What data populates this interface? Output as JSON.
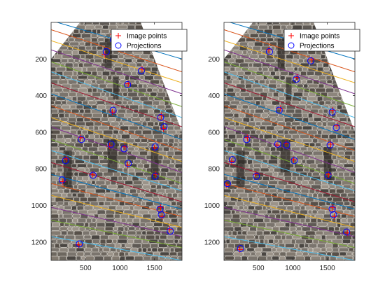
{
  "figure": {
    "legend_entries": [
      "Image points",
      "Projections"
    ]
  },
  "chart_data": [
    {
      "type": "scatter",
      "title": "",
      "xlabel": "",
      "ylabel": "",
      "xlim": [
        0,
        1900
      ],
      "ylim": [
        1300,
        0
      ],
      "y_reversed": true,
      "xticks": [
        500,
        1000,
        1500
      ],
      "xtick_labels": [
        "500",
        "1000",
        "1500"
      ],
      "yticks": [
        200,
        400,
        600,
        800,
        1000,
        1200
      ],
      "ytick_labels": [
        "200",
        "400",
        "600",
        "800",
        "1000",
        "1200"
      ],
      "legend": {
        "position": "top-right",
        "entries": [
          "Image points",
          "Projections"
        ]
      },
      "series": [
        {
          "name": "Image points",
          "marker": "+",
          "color": "#ff0000",
          "points": [
            [
              900,
              65
            ],
            [
              1030,
              130
            ],
            [
              780,
              175
            ],
            [
              1320,
              255
            ],
            [
              1120,
              335
            ],
            [
              890,
              490
            ],
            [
              1600,
              510
            ],
            [
              1630,
              580
            ],
            [
              430,
              630
            ],
            [
              1500,
              685
            ],
            [
              850,
              675
            ],
            [
              1070,
              680
            ],
            [
              1110,
              780
            ],
            [
              220,
              745
            ],
            [
              600,
              830
            ],
            [
              1520,
              830
            ],
            [
              170,
              870
            ],
            [
              1590,
              1010
            ],
            [
              1610,
              1060
            ],
            [
              1720,
              1130
            ],
            [
              400,
              1215
            ]
          ]
        },
        {
          "name": "Projections",
          "marker": "o",
          "color": "#0000ff",
          "points": [
            [
              905,
              95
            ],
            [
              1040,
              140
            ],
            [
              800,
              160
            ],
            [
              1310,
              265
            ],
            [
              1110,
              340
            ],
            [
              900,
              480
            ],
            [
              1590,
              520
            ],
            [
              1640,
              570
            ],
            [
              440,
              640
            ],
            [
              1510,
              680
            ],
            [
              870,
              665
            ],
            [
              1060,
              690
            ],
            [
              1120,
              770
            ],
            [
              210,
              755
            ],
            [
              610,
              835
            ],
            [
              1510,
              840
            ],
            [
              160,
              860
            ],
            [
              1580,
              1020
            ],
            [
              1600,
              1050
            ],
            [
              1730,
              1140
            ],
            [
              410,
              1210
            ]
          ]
        }
      ],
      "epipolar_lines": [
        [
          [
            0,
            -10
          ],
          [
            1900,
            200
          ]
        ],
        [
          [
            0,
            40
          ],
          [
            1900,
            270
          ]
        ],
        [
          [
            0,
            100
          ],
          [
            1900,
            330
          ]
        ],
        [
          [
            0,
            150
          ],
          [
            1900,
            390
          ]
        ],
        [
          [
            0,
            215
          ],
          [
            1900,
            460
          ]
        ],
        [
          [
            0,
            270
          ],
          [
            1900,
            520
          ]
        ],
        [
          [
            0,
            330
          ],
          [
            1900,
            570
          ]
        ],
        [
          [
            0,
            390
          ],
          [
            1900,
            640
          ]
        ],
        [
          [
            0,
            455
          ],
          [
            1900,
            700
          ]
        ],
        [
          [
            0,
            520
          ],
          [
            1900,
            760
          ]
        ],
        [
          [
            0,
            570
          ],
          [
            1900,
            820
          ]
        ],
        [
          [
            0,
            640
          ],
          [
            1900,
            880
          ]
        ],
        [
          [
            0,
            700
          ],
          [
            1900,
            920
          ]
        ],
        [
          [
            0,
            765
          ],
          [
            1900,
            980
          ]
        ],
        [
          [
            0,
            830
          ],
          [
            1900,
            1020
          ]
        ],
        [
          [
            0,
            880
          ],
          [
            1900,
            1060
          ]
        ],
        [
          [
            0,
            945
          ],
          [
            1900,
            1120
          ]
        ],
        [
          [
            0,
            1010
          ],
          [
            1900,
            1170
          ]
        ],
        [
          [
            0,
            1080
          ],
          [
            1900,
            1230
          ]
        ],
        [
          [
            0,
            1170
          ],
          [
            1900,
            1300
          ]
        ]
      ]
    },
    {
      "type": "scatter",
      "title": "",
      "xlabel": "",
      "ylabel": "",
      "xlim": [
        0,
        1900
      ],
      "ylim": [
        1300,
        0
      ],
      "y_reversed": true,
      "xticks": [
        500,
        1000,
        1500
      ],
      "xtick_labels": [
        "500",
        "1000",
        "1500"
      ],
      "yticks": [
        200,
        400,
        600,
        800,
        1000,
        1200
      ],
      "ytick_labels": [
        "200",
        "400",
        "600",
        "800",
        "1000",
        "1200"
      ],
      "legend": {
        "position": "top-right",
        "entries": [
          "Image points",
          "Projections"
        ]
      },
      "series": [
        {
          "name": "Image points",
          "marker": "+",
          "color": "#ff0000",
          "points": [
            [
              920,
              70
            ],
            [
              1000,
              120
            ],
            [
              650,
              150
            ],
            [
              1270,
              205
            ],
            [
              1060,
              300
            ],
            [
              820,
              470
            ],
            [
              1580,
              480
            ],
            [
              1640,
              565
            ],
            [
              340,
              630
            ],
            [
              1550,
              665
            ],
            [
              770,
              670
            ],
            [
              900,
              660
            ],
            [
              1010,
              750
            ],
            [
              110,
              760
            ],
            [
              460,
              830
            ],
            [
              1520,
              830
            ],
            [
              40,
              890
            ],
            [
              1580,
              1010
            ],
            [
              1600,
              1060
            ],
            [
              1790,
              1150
            ],
            [
              230,
              1240
            ]
          ]
        },
        {
          "name": "Projections",
          "marker": "o",
          "color": "#0000ff",
          "points": [
            [
              960,
              90
            ],
            [
              1010,
              110
            ],
            [
              660,
              160
            ],
            [
              1260,
              210
            ],
            [
              1050,
              310
            ],
            [
              800,
              480
            ],
            [
              1570,
              490
            ],
            [
              1630,
              575
            ],
            [
              330,
              640
            ],
            [
              1540,
              670
            ],
            [
              780,
              665
            ],
            [
              910,
              670
            ],
            [
              1020,
              755
            ],
            [
              120,
              750
            ],
            [
              470,
              840
            ],
            [
              1510,
              835
            ],
            [
              50,
              880
            ],
            [
              1570,
              1020
            ],
            [
              1590,
              1050
            ],
            [
              1780,
              1145
            ],
            [
              240,
              1235
            ]
          ]
        }
      ],
      "epipolar_lines": [
        [
          [
            0,
            -10
          ],
          [
            1900,
            200
          ]
        ],
        [
          [
            0,
            40
          ],
          [
            1900,
            270
          ]
        ],
        [
          [
            0,
            100
          ],
          [
            1900,
            330
          ]
        ],
        [
          [
            0,
            150
          ],
          [
            1900,
            390
          ]
        ],
        [
          [
            0,
            215
          ],
          [
            1900,
            460
          ]
        ],
        [
          [
            0,
            270
          ],
          [
            1900,
            520
          ]
        ],
        [
          [
            0,
            330
          ],
          [
            1900,
            570
          ]
        ],
        [
          [
            0,
            390
          ],
          [
            1900,
            640
          ]
        ],
        [
          [
            0,
            455
          ],
          [
            1900,
            700
          ]
        ],
        [
          [
            0,
            520
          ],
          [
            1900,
            760
          ]
        ],
        [
          [
            0,
            570
          ],
          [
            1900,
            820
          ]
        ],
        [
          [
            0,
            640
          ],
          [
            1900,
            880
          ]
        ],
        [
          [
            0,
            700
          ],
          [
            1900,
            920
          ]
        ],
        [
          [
            0,
            765
          ],
          [
            1900,
            980
          ]
        ],
        [
          [
            0,
            830
          ],
          [
            1900,
            1020
          ]
        ],
        [
          [
            0,
            880
          ],
          [
            1900,
            1060
          ]
        ],
        [
          [
            0,
            945
          ],
          [
            1900,
            1120
          ]
        ],
        [
          [
            0,
            1010
          ],
          [
            1900,
            1170
          ]
        ],
        [
          [
            0,
            1080
          ],
          [
            1900,
            1230
          ]
        ],
        [
          [
            0,
            1170
          ],
          [
            1900,
            1300
          ]
        ]
      ]
    }
  ],
  "colors": {
    "background": "#ffffff",
    "axis": "#262626",
    "image_point_marker": "#ff0000",
    "projection_marker": "#0000ff",
    "line_palette": [
      "#0072bd",
      "#d95319",
      "#edb120",
      "#7e2f8e",
      "#77ac30",
      "#4dbeee",
      "#a2142f"
    ],
    "photo_palette": [
      "#5f5a55",
      "#7a746d",
      "#8c857c",
      "#4a4642",
      "#6d675f",
      "#9b9389",
      "#575049",
      "#827a70"
    ]
  }
}
